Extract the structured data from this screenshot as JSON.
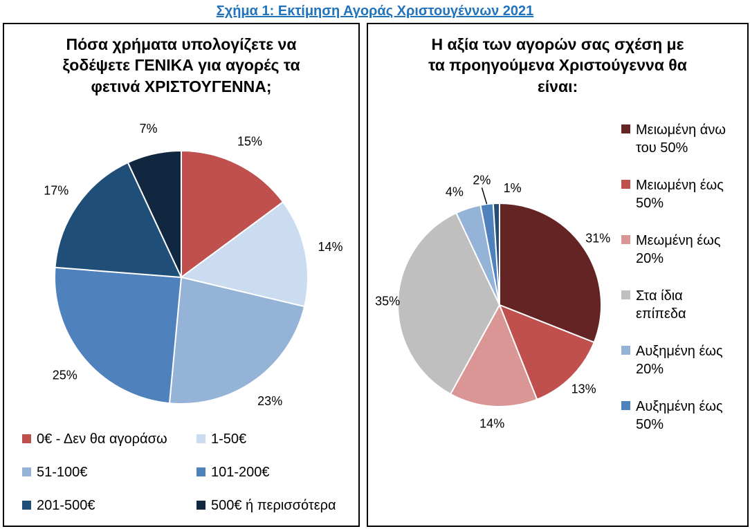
{
  "figure": {
    "title": "Σχήμα 1: Εκτίμηση Αγοράς Χριστουγέννων 2021",
    "title_color": "#2173BC"
  },
  "chart_data": [
    {
      "type": "pie",
      "title": "Πόσα χρήματα υπολογίζετε να\nξοδέψετε ΓΕΝΙΚΑ για αγορές τα\nφετινά ΧΡΙΣΤΟΥΓΕΝΝΑ;",
      "unit": "%",
      "start_angle_deg": 0,
      "direction": "clockwise",
      "legend_position": "bottom",
      "legend_columns": 2,
      "slices": [
        {
          "label": "0€ - Δεν θα αγοράσω",
          "value": 15,
          "color": "#C0504D"
        },
        {
          "label": "1-50€",
          "value": 14,
          "color": "#CBDCF1"
        },
        {
          "label": "51-100€",
          "value": 23,
          "color": "#95B3D7"
        },
        {
          "label": "101-200€",
          "value": 25,
          "color": "#4F81BD"
        },
        {
          "label": "201-500€",
          "value": 17,
          "color": "#1F4E79"
        },
        {
          "label": "500€ ή περισσότερα",
          "value": 7,
          "color": "#112740"
        }
      ]
    },
    {
      "type": "pie",
      "title": "Η αξία των αγορών σας σχέση με\nτα προηγούμενα Χριστούγεννα θα\nείναι:",
      "unit": "%",
      "start_angle_deg": 0,
      "direction": "clockwise",
      "legend_position": "right",
      "legend_columns": 1,
      "slices": [
        {
          "label": "Μειωμένη άνω του 50%",
          "value": 31,
          "color": "#632423"
        },
        {
          "label": "Μειωμένη έως 50%",
          "value": 13,
          "color": "#C0504D"
        },
        {
          "label": "Μεωμένη έως 20%",
          "value": 14,
          "color": "#D99694"
        },
        {
          "label": "Στα ίδια επίπεδα",
          "value": 35,
          "color": "#BFBFBF",
          "label_offset": [
            10,
            0
          ]
        },
        {
          "label": "Αυξημένη έως 20%",
          "value": 4,
          "color": "#95B3D7",
          "label_offset": [
            -12,
            0
          ]
        },
        {
          "label": "Αυξημένη έως 50%",
          "value": 2,
          "color": "#4F81BD",
          "label_offset": [
            -4,
            -10
          ],
          "leader": true
        },
        {
          "label": "",
          "value": 1,
          "color": "#254E77",
          "label_offset": [
            24,
            3
          ]
        }
      ]
    }
  ]
}
